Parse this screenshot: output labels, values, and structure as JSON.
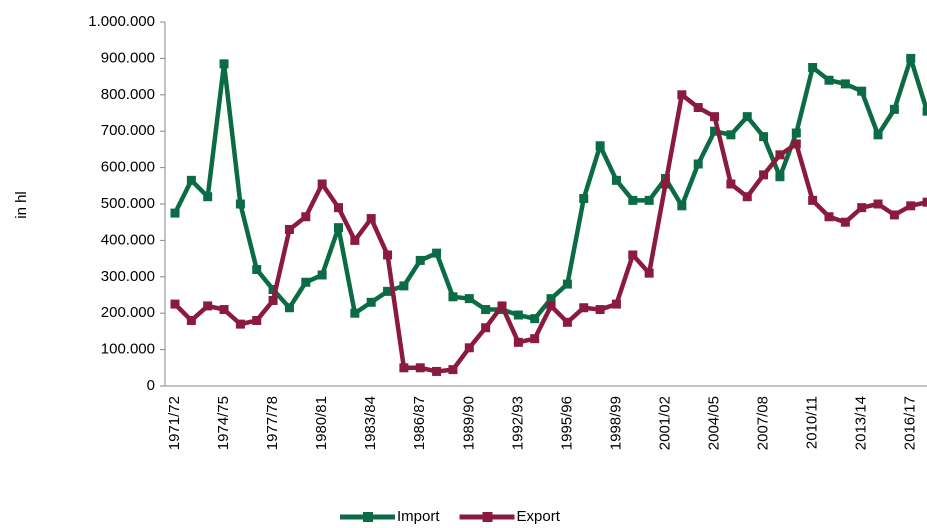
{
  "chart_data": {
    "type": "line",
    "y_label": "in hl",
    "categories": [
      "1971/72",
      null,
      null,
      "1974/75",
      null,
      null,
      "1977/78",
      null,
      null,
      "1980/81",
      null,
      null,
      "1983/84",
      null,
      null,
      "1986/87",
      null,
      null,
      "1989/90",
      null,
      null,
      "1992/93",
      null,
      null,
      "1995/96",
      null,
      null,
      "1998/99",
      null,
      null,
      "2001/02",
      null,
      null,
      "2004/05",
      null,
      null,
      "2007/08",
      null,
      null,
      "2010/11",
      null,
      null,
      "2013/14",
      null,
      null,
      "2016/17",
      null
    ],
    "series": [
      {
        "name": "Import",
        "color": "#0b6b45",
        "values": [
          475000,
          565000,
          520000,
          885000,
          500000,
          320000,
          265000,
          215000,
          285000,
          305000,
          435000,
          200000,
          230000,
          260000,
          275000,
          345000,
          365000,
          245000,
          240000,
          210000,
          210000,
          195000,
          185000,
          240000,
          280000,
          515000,
          660000,
          565000,
          510000,
          510000,
          570000,
          495000,
          610000,
          700000,
          690000,
          740000,
          685000,
          575000,
          695000,
          875000,
          840000,
          830000,
          810000,
          690000,
          760000,
          900000,
          755000
        ]
      },
      {
        "name": "Export",
        "color": "#8b1a3f",
        "values": [
          225000,
          180000,
          220000,
          210000,
          170000,
          180000,
          235000,
          430000,
          465000,
          555000,
          490000,
          400000,
          460000,
          360000,
          50000,
          50000,
          40000,
          45000,
          105000,
          160000,
          220000,
          120000,
          130000,
          220000,
          175000,
          215000,
          210000,
          225000,
          360000,
          310000,
          555000,
          800000,
          765000,
          740000,
          555000,
          520000,
          580000,
          635000,
          665000,
          510000,
          465000,
          450000,
          490000,
          500000,
          470000,
          495000,
          505000
        ]
      }
    ],
    "ylim": [
      0,
      1000000
    ],
    "yticks": [
      0,
      {
        "value": 100000,
        "label": "100.000"
      },
      {
        "value": 200000,
        "label": "200.000"
      },
      {
        "value": 300000,
        "label": "300.000"
      },
      {
        "value": 400000,
        "label": "400.000"
      },
      {
        "value": 500000,
        "label": "500.000"
      },
      {
        "value": 600000,
        "label": "600.000"
      },
      {
        "value": 700000,
        "label": "700.000"
      },
      {
        "value": 800000,
        "label": "800.000"
      },
      {
        "value": 900000,
        "label": "900.000"
      },
      {
        "value": 1000000,
        "label": "1.000.000"
      }
    ],
    "legend": "bottom"
  }
}
